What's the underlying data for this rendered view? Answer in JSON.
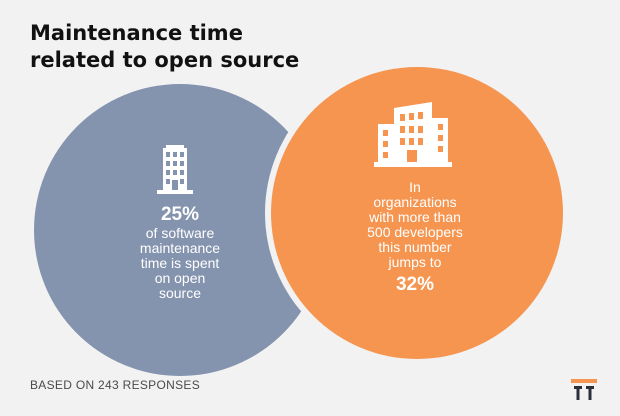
{
  "title_lines": [
    "Maintenance time",
    "related to open source"
  ],
  "colors": {
    "left_circle": "#8493ae",
    "right_circle": "#f59550",
    "logo_accent": "#f59550",
    "logo_dark": "#2b2f3a",
    "background": "#f2f2f2"
  },
  "chart_data": {
    "type": "venn",
    "sets": [
      {
        "value": "25%",
        "text": "of software maintenance time is spent on open source",
        "icon": "building-icon"
      },
      {
        "value": "32%",
        "text": "In organizations with more than 500 developers this number jumps to",
        "icon": "office-building-icon"
      }
    ]
  },
  "left": {
    "value": "25%",
    "lines": [
      "of software",
      "maintenance",
      "time is spent",
      "on open",
      "source"
    ]
  },
  "right": {
    "lines": [
      "In",
      "organizations",
      "with more than",
      "500 developers",
      "this number",
      "jumps to"
    ],
    "value": "32%"
  },
  "footer": "BASED ON 243 RESPONSES",
  "logo_icon": "brand-logo-icon"
}
